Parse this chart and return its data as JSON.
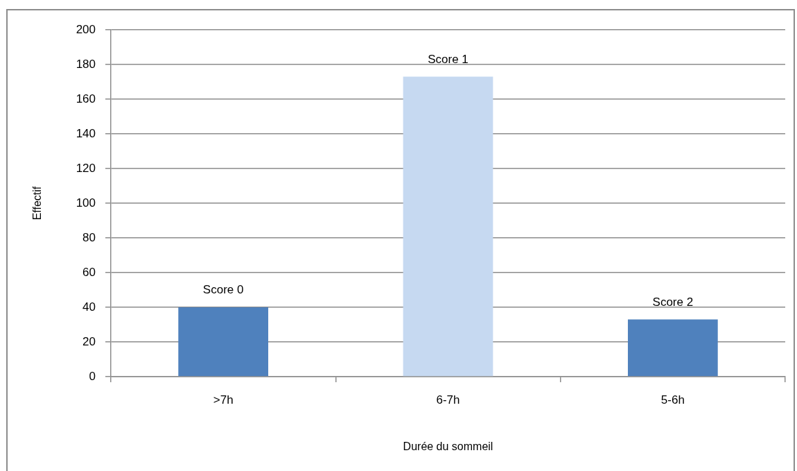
{
  "chart_data": {
    "type": "bar",
    "xlabel": "Durée du sommeil",
    "ylabel": "Effectif",
    "categories": [
      ">7h",
      "6-7h",
      "5-6h"
    ],
    "values": [
      40,
      173,
      33
    ],
    "colors": [
      "#4f81bd",
      "#c6d9f1",
      "#4f81bd"
    ],
    "ylim": [
      0,
      200
    ],
    "yticks": [
      0,
      20,
      40,
      60,
      80,
      100,
      120,
      140,
      160,
      180,
      200
    ],
    "grid": "y",
    "annotations": [
      {
        "text": "Score 0",
        "x": ">7h",
        "y": 40
      },
      {
        "text": "Score 1",
        "x": "6-7h",
        "y": 173
      },
      {
        "text": "Score 2",
        "x": "5-6h",
        "y": 33
      }
    ]
  }
}
